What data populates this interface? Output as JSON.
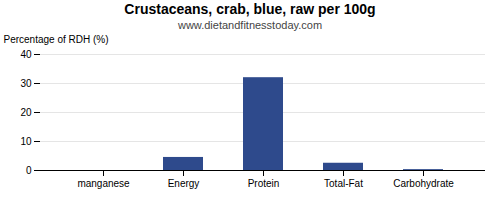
{
  "chart_data": {
    "type": "bar",
    "title": "Crustaceans, crab, blue, raw per 100g",
    "subtitle": "www.dietandfitnesstoday.com",
    "categories": [
      "manganese",
      "Energy",
      "Protein",
      "Total-Fat",
      "Carbohydrate"
    ],
    "values": [
      0.0,
      4.5,
      32.0,
      2.5,
      0.3
    ],
    "color": "#2e4a8c",
    "ylabel": "Percentage of RDH (%)",
    "ylim": [
      0,
      40
    ],
    "yticks": [
      0,
      10,
      20,
      30,
      40
    ],
    "grid": true
  }
}
